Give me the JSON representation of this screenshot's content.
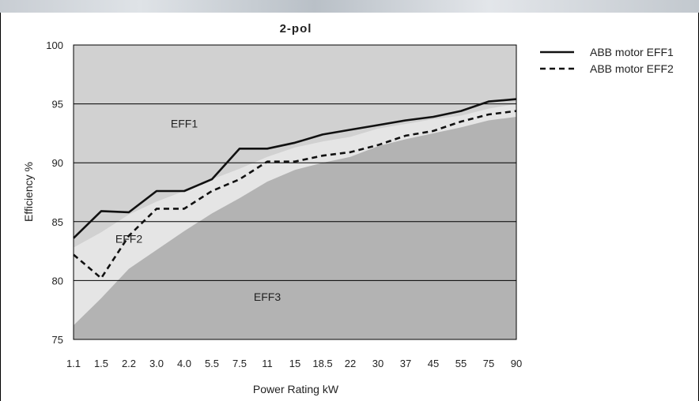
{
  "chart_data": {
    "type": "line",
    "title": "2-pol",
    "xlabel": "Power Rating kW",
    "ylabel": "Efficiency %",
    "categories": [
      "1.1",
      "1.5",
      "2.2",
      "3.0",
      "4.0",
      "5.5",
      "7.5",
      "11",
      "15",
      "18.5",
      "22",
      "30",
      "37",
      "45",
      "55",
      "75",
      "90"
    ],
    "ylim": [
      75,
      100
    ],
    "yticks": [
      75,
      80,
      85,
      90,
      95,
      100
    ],
    "grid": true,
    "legend_position": "right",
    "series": [
      {
        "name": "ABB motor EFF1",
        "style": "solid",
        "values": [
          83.6,
          85.9,
          85.8,
          87.6,
          87.6,
          88.6,
          91.2,
          91.2,
          91.7,
          92.4,
          92.8,
          93.2,
          93.6,
          93.9,
          94.4,
          95.2,
          95.4
        ]
      },
      {
        "name": "ABB motor EFF2",
        "style": "dashed",
        "values": [
          82.2,
          80.2,
          83.8,
          86.1,
          86.1,
          87.6,
          88.6,
          90.1,
          90.1,
          90.6,
          90.9,
          91.5,
          92.3,
          92.7,
          93.5,
          94.1,
          94.4
        ]
      }
    ],
    "regions": [
      {
        "name": "EFF1",
        "label_position": {
          "x_category": "4.0",
          "y": 93.0
        }
      },
      {
        "name": "EFF2",
        "label_position": {
          "x_category": "2.2",
          "y": 83.2
        }
      },
      {
        "name": "EFF3",
        "label_position": {
          "x_category": "11",
          "y": 78.3
        }
      }
    ],
    "boundaries": {
      "eff1_min": [
        82.8,
        84.1,
        85.6,
        86.7,
        87.6,
        88.6,
        89.5,
        90.5,
        91.3,
        91.8,
        92.2,
        92.9,
        93.3,
        93.7,
        94.0,
        94.6,
        95.0
      ],
      "eff2_min": [
        76.2,
        78.5,
        81.0,
        82.6,
        84.2,
        85.7,
        87.0,
        88.4,
        89.4,
        90.0,
        90.5,
        91.4,
        92.0,
        92.5,
        93.0,
        93.6,
        93.9
      ]
    },
    "colors": {
      "eff1_region": "#d1d1d1",
      "eff2_region": "#e5e5e5",
      "eff3_region": "#b3b3b3",
      "line": "#111111"
    }
  }
}
